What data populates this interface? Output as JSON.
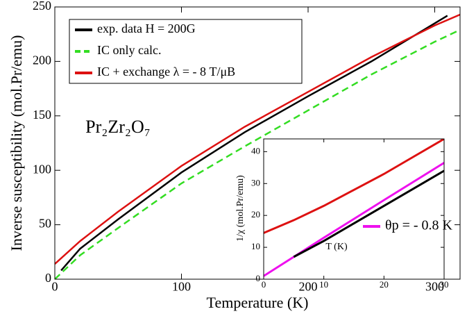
{
  "chart_data": [
    {
      "type": "line",
      "x_label": "Temperature (K)",
      "y_label": "Inverse susceptibility (mol.Pr/emu)",
      "annotation": "Pr₂Zr₂O₇",
      "xlim": [
        0,
        320
      ],
      "ylim": [
        0,
        250
      ],
      "xticks": [
        0,
        100,
        200,
        300
      ],
      "yticks": [
        0,
        50,
        100,
        150,
        200,
        250
      ],
      "legend": "upper left",
      "series": [
        {
          "name": "exp. data H = 200G",
          "color": "#000000",
          "x": [
            5,
            20,
            50,
            100,
            150,
            200,
            250,
            300,
            310
          ],
          "values": [
            8,
            28,
            55,
            98,
            135,
            168,
            200,
            235,
            242
          ]
        },
        {
          "name": "IC only calc.",
          "color": "#33dd22",
          "dash": true,
          "x": [
            0,
            20,
            50,
            100,
            150,
            200,
            250,
            300,
            320
          ],
          "values": [
            0,
            22,
            47,
            88,
            122,
            155,
            188,
            218,
            229
          ]
        },
        {
          "name": "IC + exchange λ = - 8 T/μB",
          "color": "#dd1111",
          "x": [
            0,
            20,
            50,
            100,
            150,
            200,
            250,
            300,
            320
          ],
          "values": [
            14,
            35,
            62,
            104,
            140,
            172,
            204,
            233,
            243
          ]
        }
      ]
    },
    {
      "type": "line",
      "x_label": "T (K)",
      "y_label": "1/χ (mol.Pr/emu)",
      "xlim": [
        0,
        30
      ],
      "ylim": [
        0,
        44
      ],
      "xticks": [
        0,
        10,
        20,
        30
      ],
      "yticks": [
        0,
        10,
        20,
        30,
        40
      ],
      "legend": "center right",
      "series": [
        {
          "color": "#dd1111",
          "x": [
            0,
            5,
            10,
            15,
            20,
            25,
            30
          ],
          "values": [
            14.5,
            18.5,
            23,
            28,
            33,
            38.5,
            44
          ]
        },
        {
          "name": "θp = - 0.8 K",
          "color": "#ee11ee",
          "x": [
            0,
            10,
            20,
            30
          ],
          "values": [
            1,
            13,
            24.8,
            36.5
          ]
        },
        {
          "color": "#000000",
          "x": [
            5,
            10,
            15,
            20,
            25,
            30
          ],
          "values": [
            7,
            12,
            17.5,
            23,
            28.5,
            34
          ]
        }
      ]
    }
  ]
}
